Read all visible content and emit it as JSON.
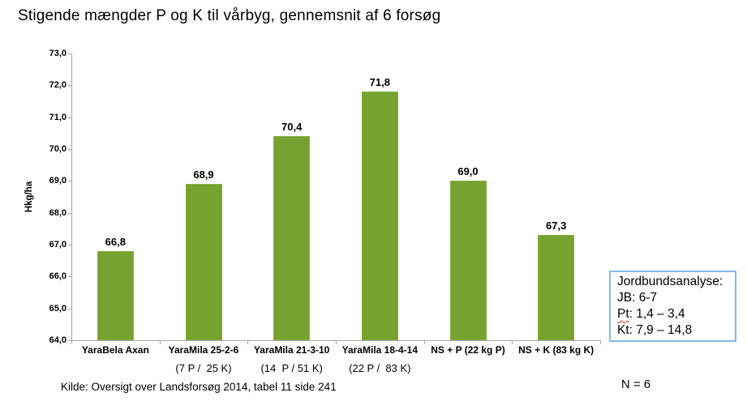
{
  "title": "Stigende mængder P og K til vårbyg, gennemsnit af 6 forsøg",
  "chart_data": {
    "type": "bar",
    "categories": [
      "YaraBela Axan",
      "YaraMila 25-2-6",
      "YaraMila 21-3-10",
      "YaraMila 18-4-14",
      "NS + P (22 kg P)",
      "NS + K (83 kg K)"
    ],
    "sublabels": [
      "",
      "(7 P /  25 K)",
      "(14  P / 51 K)",
      "(22 P /  83 K)",
      "",
      ""
    ],
    "values": [
      66.8,
      68.9,
      70.4,
      71.8,
      69.0,
      67.3
    ],
    "value_labels": [
      "66,8",
      "68,9",
      "70,4",
      "71,8",
      "69,0",
      "67,3"
    ],
    "title": "Stigende mængder P og K til vårbyg, gennemsnit af 6 forsøg",
    "xlabel": "",
    "ylabel": "Hkg/ha",
    "ylim": [
      64.0,
      73.0
    ],
    "ytick_step": 1.0,
    "ytick_labels": [
      "73,0",
      "72,0",
      "71,0",
      "70,0",
      "69,0",
      "68,0",
      "67,0",
      "66,0",
      "65,0",
      "64,0"
    ],
    "bar_color": "#76A232",
    "axis_color": "#A6A6A6",
    "grid": false,
    "legend": null
  },
  "annotation_box": {
    "border_color": "#84B8E4",
    "lines": [
      {
        "text": "Jordbundsanalyse:"
      },
      {
        "text": "JB: 6-7"
      },
      {
        "head": "Pt",
        "tail": ": 1,4 – 3,4",
        "squiggle": true
      },
      {
        "text": "Kt: 7,9 – 14,8"
      }
    ]
  },
  "footer": {
    "source": "Kilde: Oversigt over Landsforsøg 2014, tabel 11 side 241",
    "n_label": "N = 6"
  }
}
